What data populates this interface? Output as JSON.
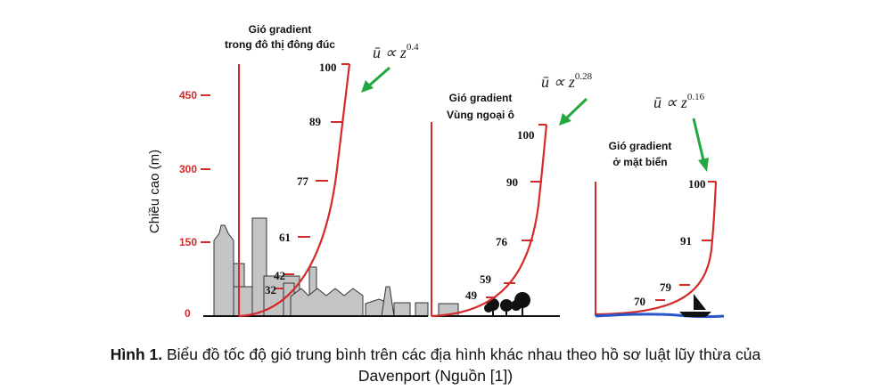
{
  "y_axis": {
    "label": "Chiều cao (m)",
    "ticks": [
      "450",
      "300",
      "150",
      "0"
    ]
  },
  "panels": [
    {
      "id": "urban",
      "title_line1": "Gió gradient",
      "title_line2": "trong đô thị đông đúc",
      "formula_prefix": "ū ∝ z",
      "exponent": "0.4",
      "speed_labels": [
        "100",
        "89",
        "77",
        "61",
        "42",
        "32"
      ]
    },
    {
      "id": "suburban",
      "title_line1": "Gió gradient",
      "title_line2": "Vùng ngoại ô",
      "formula_prefix": "ū ∝ z",
      "exponent": "0.28",
      "speed_labels": [
        "100",
        "90",
        "76",
        "59",
        "49"
      ]
    },
    {
      "id": "sea",
      "title_line1": "Gió gradient",
      "title_line2": "ở mặt biển",
      "formula_prefix": "ū ∝ z",
      "exponent": "0.16",
      "speed_labels": [
        "100",
        "91",
        "79",
        "70"
      ]
    }
  ],
  "caption": {
    "bold": "Hình 1.",
    "text": " Biểu đồ tốc độ gió trung bình trên các địa hình khác nhau theo hồ sơ luật lũy thừa của",
    "line2": "Davenport (Nguồn [1])"
  },
  "colors": {
    "profile": "#d42a2a",
    "tick_label": "#d42a2a",
    "arrow": "#21a83e",
    "buildings": "#c4c4c4",
    "sea": "#2855c8"
  }
}
